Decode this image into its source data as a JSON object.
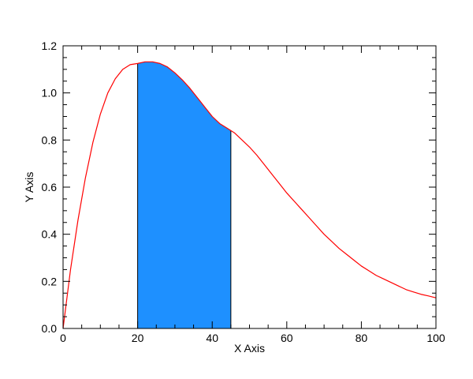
{
  "chart_data": {
    "type": "line",
    "title": "",
    "xlabel": "X Axis",
    "ylabel": "Y Axis",
    "xlim": [
      0,
      100
    ],
    "ylim": [
      0,
      1.2
    ],
    "xticks": [
      0,
      20,
      40,
      60,
      80,
      100
    ],
    "yticks": [
      0.0,
      0.2,
      0.4,
      0.6,
      0.8,
      1.0,
      1.2
    ],
    "xtick_labels": [
      "0",
      "20",
      "40",
      "60",
      "80",
      "100"
    ],
    "ytick_labels": [
      "0.0",
      "0.2",
      "0.4",
      "0.6",
      "0.8",
      "1.0",
      "1.2"
    ],
    "grid": false,
    "series": [
      {
        "color": "#ff0000",
        "x": [
          0,
          2,
          4,
          6,
          8,
          10,
          12,
          14,
          16,
          18,
          20,
          22,
          24,
          26,
          28,
          30,
          32,
          34,
          36,
          38,
          40,
          42,
          44,
          45,
          46,
          48,
          50,
          52,
          54,
          56,
          58,
          60,
          62,
          64,
          66,
          68,
          70,
          72,
          74,
          76,
          78,
          80,
          82,
          84,
          86,
          88,
          90,
          92,
          94,
          96,
          98,
          100
        ],
        "y": [
          0.0,
          0.25,
          0.46,
          0.64,
          0.79,
          0.91,
          1.0,
          1.06,
          1.1,
          1.12,
          1.125,
          1.132,
          1.132,
          1.125,
          1.11,
          1.085,
          1.055,
          1.02,
          0.98,
          0.94,
          0.9,
          0.87,
          0.85,
          0.84,
          0.83,
          0.8,
          0.77,
          0.735,
          0.695,
          0.655,
          0.615,
          0.575,
          0.54,
          0.505,
          0.47,
          0.435,
          0.4,
          0.37,
          0.34,
          0.315,
          0.29,
          0.265,
          0.245,
          0.225,
          0.21,
          0.195,
          0.18,
          0.165,
          0.155,
          0.145,
          0.138,
          0.13
        ]
      }
    ],
    "shaded_region": {
      "x_start": 20,
      "x_end": 45,
      "fill": "#1e90ff",
      "edge_color": "#000000"
    },
    "colors": {
      "frame": "#000000",
      "background": "#ffffff"
    }
  }
}
